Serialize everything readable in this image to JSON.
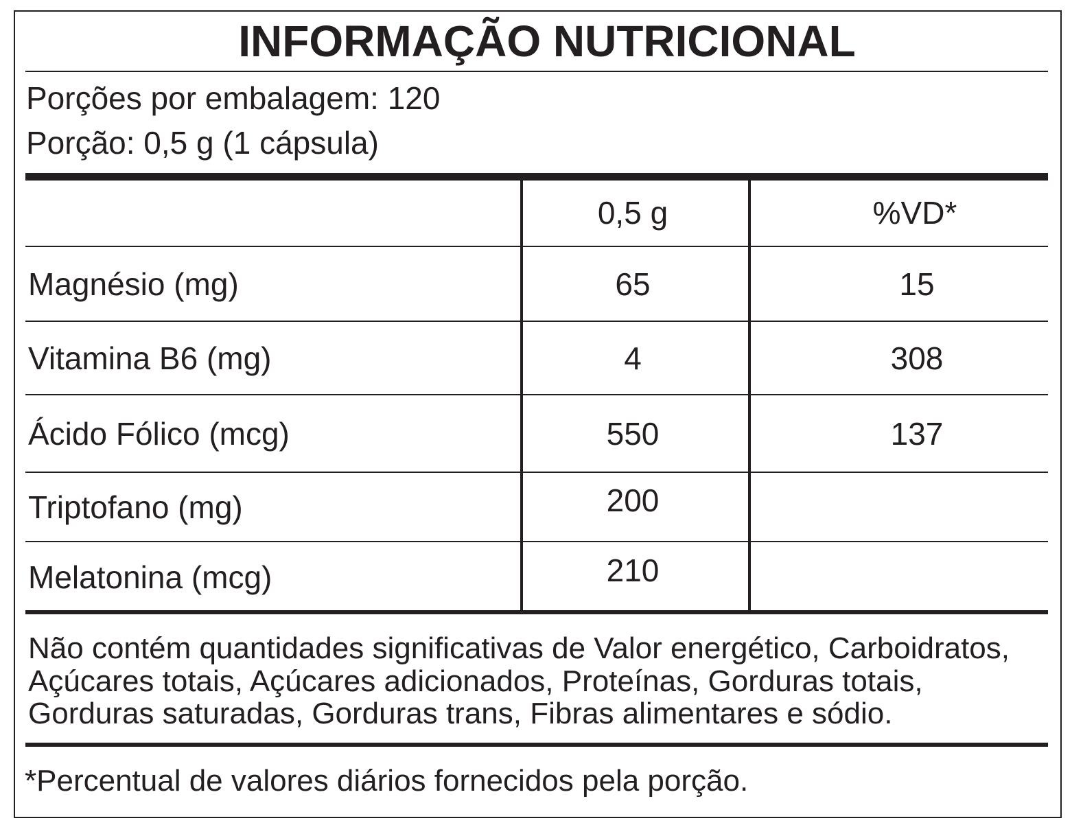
{
  "header": {
    "title": "INFORMAÇÃO NUTRICIONAL",
    "servings": [
      "Porções por embalagem: 120",
      "Porção: 0,5 g (1 cápsula)"
    ]
  },
  "table": {
    "columns": [
      "0,5 g",
      "%VD*"
    ],
    "rows": [
      {
        "label": "Magnésio (mg)",
        "amount": 65,
        "dv": 15
      },
      {
        "label": "Vitamina B6 (mg)",
        "amount": 4,
        "dv": 308
      },
      {
        "label": "Ácido Fólico (mcg)",
        "amount": 550,
        "dv": 137
      },
      {
        "label": "Triptofano (mg)",
        "amount": 200
      },
      {
        "label": "Melatonina (mcg)",
        "amount": 210
      }
    ]
  },
  "notes": {
    "not_contained": [
      "Não contém quantidades significativas de Valor energético, Carboidratos,",
      "Açúcares totais, Açúcares adicionados, Proteínas, Gorduras totais,",
      "Gorduras saturadas, Gorduras trans, Fibras alimentares e sódio."
    ],
    "footnote": "*Percentual de valores diários fornecidos pela porção."
  }
}
